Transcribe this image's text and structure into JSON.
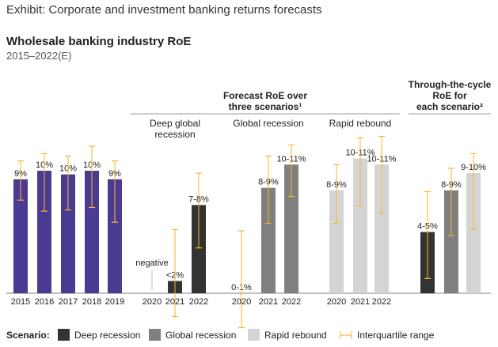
{
  "exhibit": "Exhibit: Corporate and investment banking returns forecasts",
  "chart_data": {
    "type": "bar",
    "title": "Wholesale banking industry RoE",
    "subtitle": "2015–2022(E)",
    "unit": "%",
    "colors": {
      "historical": "#4b3a92",
      "deep": "#333333",
      "global": "#7f7f7f",
      "rapid": "#d4d4d4",
      "iqr": "#f5b82e"
    },
    "group_headers": {
      "forecast": [
        "Forecast RoE over",
        "three scenarios¹"
      ],
      "ttc": [
        "Through-the-cycle",
        "RoE for",
        "each scenario²"
      ]
    },
    "groups": [
      {
        "name": "",
        "color": "historical",
        "bars": [
          {
            "x": "2015",
            "value": 9.3,
            "label": "9%",
            "iqr": [
              7.6,
              10.8
            ]
          },
          {
            "x": "2016",
            "value": 10.0,
            "label": "10%",
            "iqr": [
              6.7,
              11.4
            ]
          },
          {
            "x": "2017",
            "value": 9.7,
            "label": "10%",
            "iqr": [
              6.8,
              11.2
            ]
          },
          {
            "x": "2018",
            "value": 10.0,
            "label": "10%",
            "iqr": [
              7.0,
              12.0
            ]
          },
          {
            "x": "2019",
            "value": 9.3,
            "label": "9%",
            "iqr": [
              5.8,
              10.8
            ]
          }
        ]
      },
      {
        "name": [
          "Deep global",
          "recession"
        ],
        "color": "deep",
        "bars": [
          {
            "x": "2020",
            "value": 0,
            "label": "negative",
            "iqr": null,
            "negative": true
          },
          {
            "x": "2021",
            "value": 1.0,
            "label": "<2%",
            "iqr": [
              -1.9,
              5.2
            ]
          },
          {
            "x": "2022",
            "value": 7.2,
            "label": "7-8%",
            "iqr": [
              3.7,
              9.8
            ]
          }
        ]
      },
      {
        "name": [
          "Global recession"
        ],
        "color": "global",
        "bars": [
          {
            "x": "2020",
            "value": 0,
            "label": "0-1%",
            "iqr": [
              -2.8,
              5.1
            ]
          },
          {
            "x": "2021",
            "value": 8.6,
            "label": "8-9%",
            "iqr": [
              5.7,
              11.2
            ]
          },
          {
            "x": "2022",
            "value": 10.5,
            "label": "10-11%",
            "iqr": [
              7.9,
              12.1
            ]
          }
        ]
      },
      {
        "name": [
          "Rapid rebound"
        ],
        "color": "rapid",
        "bars": [
          {
            "x": "2020",
            "value": 8.4,
            "label": "8-9%",
            "iqr": [
              5.7,
              10.5
            ]
          },
          {
            "x": "2021",
            "value": 11.0,
            "label": "10-11%",
            "iqr": [
              7.1,
              12.7
            ]
          },
          {
            "x": "2022",
            "value": 10.5,
            "label": "10-11%",
            "iqr": [
              6.5,
              12.8
            ]
          }
        ]
      },
      {
        "name": "",
        "ttc": true,
        "bars": [
          {
            "x": "",
            "value": 5.0,
            "label": "4-5%",
            "iqr": [
              1.2,
              8.3
            ],
            "color": "deep"
          },
          {
            "x": "",
            "value": 8.4,
            "label": "8-9%",
            "iqr": [
              4.7,
              10.2
            ],
            "color": "global"
          },
          {
            "x": "",
            "value": 9.8,
            "label": "9-10%",
            "iqr": [
              5.2,
              11.4
            ],
            "color": "rapid"
          }
        ]
      }
    ],
    "legend": {
      "title": "Scenario:",
      "items": [
        {
          "label": "Deep recession",
          "color": "deep"
        },
        {
          "label": "Global recession",
          "color": "global"
        },
        {
          "label": "Rapid rebound",
          "color": "rapid"
        },
        {
          "label": "Interquartile range",
          "color": "iqr",
          "type": "errorbar"
        }
      ]
    }
  }
}
